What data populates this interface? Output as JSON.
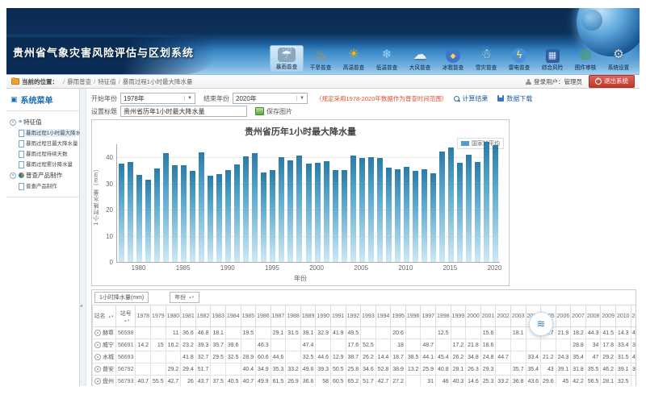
{
  "app": {
    "title": "贵州省气象灾害风险评估与区划系统"
  },
  "nav": {
    "items": [
      {
        "label": "暴雨普查",
        "icon": "rainstorm-icon",
        "active": true
      },
      {
        "label": "干旱普查",
        "icon": "drought-icon",
        "active": false
      },
      {
        "label": "高温普查",
        "icon": "high-temperature-icon",
        "active": false
      },
      {
        "label": "低温普查",
        "icon": "low-temperature-icon",
        "active": false
      },
      {
        "label": "大风普查",
        "icon": "gale-icon",
        "active": false
      },
      {
        "label": "冰雹普查",
        "icon": "hail-icon",
        "active": false
      },
      {
        "label": "雪灾普查",
        "icon": "snow-disaster-icon",
        "active": false
      },
      {
        "label": "雷电普查",
        "icon": "lightning-icon",
        "active": false
      },
      {
        "label": "综合风险",
        "icon": "comprehensive-risk-icon",
        "active": false
      },
      {
        "label": "图件审核",
        "icon": "map-review-icon",
        "active": false
      },
      {
        "label": "系统设置",
        "icon": "system-settings-icon",
        "active": false
      }
    ]
  },
  "breadcrumb": {
    "location_label": "当前的位置：",
    "path": [
      "暴雨普查",
      "特征值",
      "暴雨过程1小时最大降水量"
    ],
    "user_label": "登录用户：管理员",
    "logout_label": "退出系统"
  },
  "sidebar": {
    "title": "系统菜单",
    "groups": [
      {
        "label": "特征值",
        "items": [
          {
            "label": "暴雨过程1小时最大降水量",
            "selected": true
          },
          {
            "label": "暴雨过程日最大降水量",
            "selected": false
          },
          {
            "label": "暴雨过程持续天数",
            "selected": false
          },
          {
            "label": "暴雨过程累计降水量",
            "selected": false
          }
        ]
      },
      {
        "label": "普查产品制作",
        "items": [
          {
            "label": "普查产品制作",
            "selected": false
          }
        ]
      }
    ]
  },
  "toolbar": {
    "start_year_label": "开始年份",
    "start_year_value": "1978年",
    "end_year_label": "结束年份",
    "end_year_value": "2020年",
    "note": "（规定采用1978-2020年数据作为普查时间范围）",
    "calc_label": "计算结果",
    "download_label": "数据下载",
    "title_label": "设置标题",
    "title_value": "贵州省历年1小时最大降水量",
    "save_label": "保存图片"
  },
  "chart_data": {
    "type": "bar",
    "title": "贵州省历年1小时最大降水量",
    "legend": [
      "国家站平均"
    ],
    "xlabel": "年份",
    "ylabel": "1小时降水量（mm）",
    "ylim": [
      0,
      45
    ],
    "yticks": [
      0,
      10,
      20,
      30,
      40
    ],
    "xticks": [
      1980,
      1985,
      1990,
      1995,
      2000,
      2005,
      2010,
      2015,
      2020
    ],
    "grid": true,
    "legend_position": "top-right",
    "bar_color": "#4aa0c8",
    "categories": [
      1978,
      1979,
      1980,
      1981,
      1982,
      1983,
      1984,
      1985,
      1986,
      1987,
      1988,
      1989,
      1990,
      1991,
      1992,
      1993,
      1994,
      1995,
      1996,
      1997,
      1998,
      1999,
      2000,
      2001,
      2002,
      2003,
      2004,
      2005,
      2006,
      2007,
      2008,
      2009,
      2010,
      2011,
      2012,
      2013,
      2014,
      2015,
      2016,
      2017,
      2018,
      2019,
      2020
    ],
    "values": [
      37.5,
      38.3,
      33.2,
      31.5,
      35.8,
      41.7,
      37.0,
      37.0,
      34.7,
      41.8,
      33.1,
      33.5,
      35.1,
      37.4,
      40.4,
      41.5,
      34.2,
      35.2,
      40.0,
      38.8,
      40.7,
      37.7,
      37.9,
      38.5,
      35.2,
      35.2,
      40.8,
      39.8,
      40.2,
      39.8,
      36.1,
      35.5,
      36.4,
      34.8,
      35.3,
      34.0,
      42.3,
      43.8,
      37.9,
      41.0,
      38.3,
      45.8,
      44.7
    ]
  },
  "table": {
    "value_filter_label": "1小时降水量(mm)",
    "year_filter_label": "年份",
    "col_station_name": "站名",
    "col_station_id": "站号",
    "years": [
      1978,
      1979,
      1980,
      1981,
      1982,
      1983,
      1984,
      1985,
      1986,
      1987,
      1988,
      1989,
      1990,
      1991,
      1992,
      1993,
      1994,
      1995,
      1996,
      1997,
      1998,
      1999,
      2000,
      2001,
      2002,
      2003,
      2004,
      2005,
      2006,
      2007,
      2008,
      2009,
      2010,
      2011,
      2012,
      2013,
      2014,
      2015
    ],
    "rows": [
      {
        "name": "赫章",
        "id": "56598",
        "values": [
          "",
          "",
          "11",
          "36.6",
          "46.8",
          "18.1",
          "",
          "19.5",
          "",
          "29.1",
          "31.5",
          "39.1",
          "32.9",
          "41.9",
          "49.5",
          "",
          "",
          "20.6",
          "",
          "",
          "12.5",
          "",
          "",
          "15.6",
          "",
          "18.1",
          "",
          "34.7",
          "21.9",
          "18.2",
          "44.3",
          "41.5",
          "14.3",
          "45.6",
          "7.8",
          "15.3",
          "",
          ""
        ]
      },
      {
        "name": "威宁",
        "id": "56691",
        "values": [
          "14.2",
          "15",
          "16.2",
          "23.2",
          "39.3",
          "35.7",
          "39.6",
          "",
          "46.3",
          "",
          "",
          "47.4",
          "",
          "",
          "17.6",
          "52.5",
          "",
          "18",
          "",
          "48.7",
          "",
          "17.2",
          "21.8",
          "18.6",
          "",
          "",
          "",
          "",
          "",
          "28.8",
          "34",
          "17.8",
          "33.4",
          "31.4",
          "29.5",
          "35.1",
          "",
          ""
        ]
      },
      {
        "name": "水城",
        "id": "56693",
        "values": [
          "",
          "",
          "",
          "41.8",
          "32.7",
          "29.5",
          "32.5",
          "28.9",
          "60.6",
          "44.6",
          "",
          "32.5",
          "44.6",
          "12.9",
          "38.7",
          "26.2",
          "14.4",
          "18.7",
          "38.5",
          "44.1",
          "45.4",
          "26.2",
          "34.8",
          "24.8",
          "44.7",
          "",
          "33.4",
          "21.2",
          "24.3",
          "35.4",
          "47",
          "29.2",
          "31.5",
          "45.8",
          "34.3",
          "",
          "31.9",
          ""
        ]
      },
      {
        "name": "普安",
        "id": "56792",
        "values": [
          "",
          "",
          "29.2",
          "29.4",
          "51.7",
          "",
          "",
          "40.4",
          "34.9",
          "35.3",
          "33.2",
          "49.6",
          "39.3",
          "50.5",
          "25.8",
          "34.6",
          "52.8",
          "38.9",
          "13.2",
          "25.9",
          "40.8",
          "28.1",
          "26.3",
          "29.3",
          "",
          "35.7",
          "35.4",
          "43",
          "39.1",
          "31.8",
          "35.5",
          "46.2",
          "39.1",
          "31.5",
          "38.6",
          "46.8",
          "31.1",
          ""
        ]
      },
      {
        "name": "盘州",
        "id": "56793",
        "values": [
          "40.7",
          "55.5",
          "42.7",
          "26",
          "43.7",
          "37.5",
          "40.5",
          "40.7",
          "49.9",
          "61.5",
          "26.9",
          "36.6",
          "58",
          "60.5",
          "65.2",
          "51.7",
          "42.7",
          "27.2",
          "",
          "31",
          "46",
          "40.3",
          "14.6",
          "25.3",
          "33.2",
          "36.8",
          "43.6",
          "29.6",
          "45",
          "42.2",
          "56.5",
          "28.1",
          "32.5",
          "",
          "30.2",
          "18.5",
          "35.8",
          ""
        ]
      },
      {
        "name": "桐梓",
        "id": "57606",
        "values": [
          "40.1",
          "51.3",
          "17.2",
          "28.2",
          "33.2",
          "41.1",
          "27.6",
          "40.5",
          "9.8",
          "33.1",
          "36.4",
          "31.8",
          "24.2",
          "39.4",
          "25.1",
          "",
          "29.3",
          "31.2",
          "23.6",
          "",
          "18.2",
          "41.9",
          "55",
          "16.9",
          "50.8",
          "30",
          "20.3",
          "17.1",
          "",
          "29.5",
          "17.8",
          "17.4",
          "29.8",
          "39.2",
          "29.3",
          "14.1",
          "42.1",
          ""
        ]
      }
    ]
  }
}
